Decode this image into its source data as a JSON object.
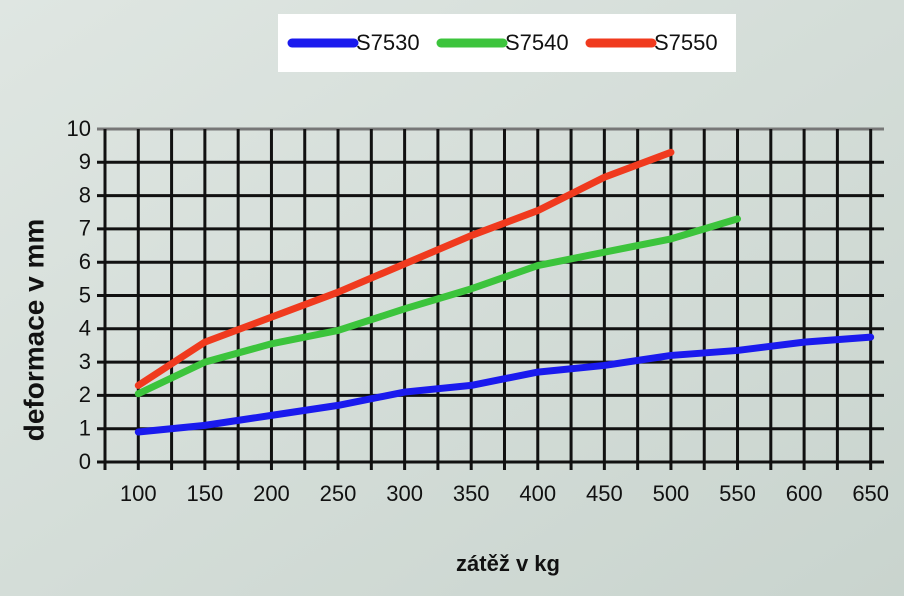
{
  "chart_data": {
    "type": "line",
    "x_label": "zátěž v kg",
    "y_label": "deformace v mm",
    "x": [
      100,
      150,
      200,
      250,
      300,
      350,
      400,
      450,
      500,
      550,
      600,
      650
    ],
    "series": [
      {
        "name": "S7530",
        "color": "#1a1aee",
        "values": [
          0.9,
          1.1,
          1.4,
          1.7,
          2.1,
          2.3,
          2.7,
          2.9,
          3.2,
          3.35,
          3.6,
          3.75
        ]
      },
      {
        "name": "S7540",
        "color": "#3cc43c",
        "values": [
          2.05,
          3.0,
          3.55,
          3.95,
          4.6,
          5.2,
          5.9,
          6.3,
          6.7,
          7.3,
          null,
          null
        ]
      },
      {
        "name": "S7550",
        "color": "#f03a1e",
        "values": [
          2.3,
          3.6,
          4.35,
          5.1,
          5.95,
          6.8,
          7.55,
          8.55,
          9.3,
          null,
          null,
          null
        ]
      }
    ],
    "xlim": [
      75,
      660
    ],
    "ylim": [
      0,
      10
    ],
    "xticks": [
      100,
      150,
      200,
      250,
      300,
      350,
      400,
      450,
      500,
      550,
      600,
      650
    ],
    "xminor": [
      75,
      125,
      175,
      225,
      275,
      325,
      375,
      425,
      475,
      525,
      575,
      625
    ],
    "yticks": [
      0,
      1,
      2,
      3,
      4,
      5,
      6,
      7,
      8,
      9,
      10
    ],
    "grid": true,
    "legend": "top"
  }
}
